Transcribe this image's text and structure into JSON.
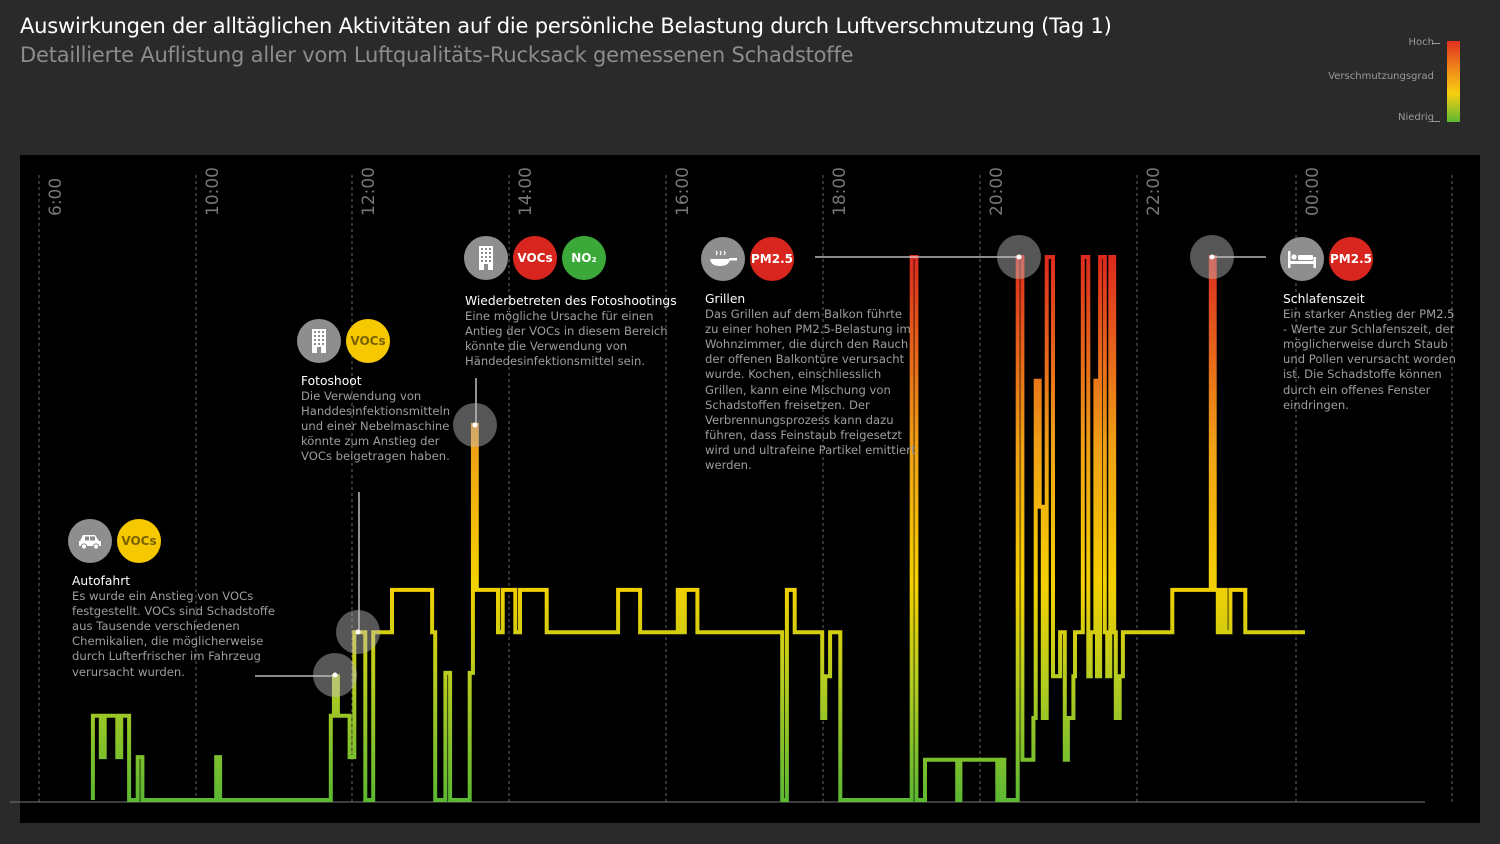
{
  "header": {
    "title": "Auswirkungen der alltäglichen Aktivitäten auf die persönliche Belastung durch Luftverschmutzung (Tag 1)",
    "subtitle": "Detaillierte Auflistung aller vom Luftqualitäts-Rucksack gemessenen Schadstoffe"
  },
  "legend": {
    "high": "Hoch",
    "title": "Verschmutzungsgrad",
    "low": "Niedrig",
    "colors": [
      "#e0301e",
      "#f08a1a",
      "#f7cf10",
      "#5cb832"
    ]
  },
  "chart_data": {
    "type": "line",
    "step": true,
    "x_unit": "hour of day",
    "y_unit": "relative pollution level (0 = Niedrig, 1 = Hoch)",
    "ylim": [
      0,
      1
    ],
    "grid": "vertical dashed",
    "x_ticks": [
      "6:00",
      "10:00",
      "12:00",
      "14:00",
      "16:00",
      "18:00",
      "20:00",
      "22:00",
      "00:00"
    ],
    "series": [
      {
        "points": [
          [
            8.7,
            0.155
          ],
          [
            8.8,
            0.079
          ],
          [
            8.85,
            0.155
          ],
          [
            9.01,
            0.079
          ],
          [
            9.06,
            0.155
          ],
          [
            9.16,
            0
          ],
          [
            9.27,
            0.079
          ],
          [
            9.33,
            0
          ],
          [
            10.27,
            0.079
          ],
          [
            10.32,
            0
          ],
          [
            11.73,
            0.155
          ],
          [
            11.77,
            0.228
          ],
          [
            11.82,
            0.155
          ],
          [
            11.97,
            0.079
          ],
          [
            12.03,
            0.309
          ],
          [
            12.17,
            0
          ],
          [
            12.27,
            0.309
          ],
          [
            12.51,
            0.387
          ],
          [
            13.02,
            0.309
          ],
          [
            13.06,
            0
          ],
          [
            13.19,
            0.234
          ],
          [
            13.25,
            0
          ],
          [
            13.5,
            0.234
          ],
          [
            13.54,
            0.691
          ],
          [
            13.59,
            0.387
          ],
          [
            13.86,
            0.309
          ],
          [
            13.92,
            0.387
          ],
          [
            14.08,
            0.309
          ],
          [
            14.14,
            0.387
          ],
          [
            14.48,
            0.309
          ],
          [
            15.39,
            0.387
          ],
          [
            15.67,
            0.309
          ],
          [
            16.15,
            0.387
          ],
          [
            16.2,
            0.309
          ],
          [
            16.24,
            0.387
          ],
          [
            16.4,
            0.309
          ],
          [
            17.48,
            0
          ],
          [
            17.54,
            0.387
          ],
          [
            17.64,
            0.309
          ],
          [
            17.99,
            0.151
          ],
          [
            18.03,
            0.228
          ],
          [
            18.09,
            0.309
          ],
          [
            18.22,
            0
          ],
          [
            19.13,
            1.0
          ],
          [
            19.19,
            0
          ],
          [
            19.3,
            0.074
          ],
          [
            19.71,
            0
          ],
          [
            19.75,
            0.074
          ],
          [
            20.22,
            0
          ],
          [
            20.26,
            0.074
          ],
          [
            20.31,
            0
          ],
          [
            20.48,
            1.0
          ],
          [
            20.54,
            0.074
          ],
          [
            20.68,
            0.151
          ],
          [
            20.71,
            0.772
          ],
          [
            20.76,
            0.54
          ],
          [
            20.8,
            0.151
          ],
          [
            20.85,
            1.0
          ],
          [
            20.93,
            0.228
          ],
          [
            21.02,
            0.309
          ],
          [
            21.08,
            0.074
          ],
          [
            21.12,
            0.151
          ],
          [
            21.19,
            0.228
          ],
          [
            21.21,
            0.309
          ],
          [
            21.31,
            1.0
          ],
          [
            21.38,
            0.228
          ],
          [
            21.41,
            0.309
          ],
          [
            21.47,
            0.772
          ],
          [
            21.49,
            0.228
          ],
          [
            21.53,
            1.0
          ],
          [
            21.59,
            0.309
          ],
          [
            21.62,
            0.228
          ],
          [
            21.66,
            1.0
          ],
          [
            21.71,
            0.309
          ],
          [
            21.73,
            0.151
          ],
          [
            21.78,
            0.228
          ],
          [
            21.82,
            0.309
          ],
          [
            22.45,
            0.387
          ],
          [
            22.94,
            1.0
          ],
          [
            22.99,
            0.387
          ],
          [
            23.03,
            0.309
          ],
          [
            23.08,
            0.387
          ],
          [
            23.13,
            0.309
          ],
          [
            23.19,
            0.387
          ],
          [
            23.38,
            0.309
          ],
          [
            24.14,
            0.309
          ]
        ]
      }
    ],
    "annotations": [
      {
        "id": "autofahrt",
        "at": [
          11.79,
          0.228
        ],
        "icon": "car-icon",
        "pollutants": [
          {
            "label": "VOCs",
            "color": "#f5c800"
          }
        ],
        "title": "Autofahrt",
        "lines": [
          "Es wurde ein Anstieg von VOCs",
          "festgestellt. VOCs sind Schadstoffe",
          "aus Tausende verschiedenen",
          "Chemikalien, die möglicherweise",
          "durch Lufterfrischer im Fahrzeug",
          "verursacht wurden."
        ]
      },
      {
        "id": "fotoshoot",
        "at": [
          12.08,
          0.309
        ],
        "icon": "building-icon",
        "pollutants": [
          {
            "label": "VOCs",
            "color": "#f5c800"
          }
        ],
        "title": "Fotoshoot",
        "lines": [
          "Die Verwendung von",
          "Handdesinfektionsmitteln",
          "und einer Nebelmaschine",
          "könnte zum Anstieg der",
          "VOCs beigetragen haben."
        ]
      },
      {
        "id": "wiederbetreten",
        "at": [
          13.56,
          0.691
        ],
        "icon": "building-icon",
        "pollutants": [
          {
            "label": "VOCs",
            "color": "#d8261e"
          },
          {
            "label": "NO₂",
            "color": "#3aa93a"
          }
        ],
        "title": "Wiederbetreten des Fotoshootings",
        "lines": [
          "Eine mögliche Ursache für einen",
          "Antieg der VOCs in diesem Bereich",
          "könnte die Verwendung von",
          "Händedesinfektionsmittel sein."
        ]
      },
      {
        "id": "grillen",
        "at": [
          20.5,
          1.0
        ],
        "icon": "frying-pan-icon",
        "pollutants": [
          {
            "label": "PM2.5",
            "color": "#d8261e"
          }
        ],
        "title": "Grillen",
        "lines": [
          "Das Grillen auf dem Balkon führte",
          "zu einer hohen PM2.5-Belastung im",
          "Wohnzimmer, die durch den Rauch",
          "der offenen Balkontüre verursacht",
          "wurde. Kochen, einschliesslich",
          "Grillen, kann eine Mischung von",
          "Schadstoffen freisetzen. Der",
          "Verbrennungsprozess kann dazu",
          "führen, dass Feinstaub freigesetzt",
          "wird und ultrafeine Partikel emittiert",
          "werden."
        ]
      },
      {
        "id": "schlafenszeit",
        "at": [
          22.96,
          1.0
        ],
        "icon": "bed-icon",
        "pollutants": [
          {
            "label": "PM2.5",
            "color": "#d8261e"
          }
        ],
        "title": "Schlafenszeit",
        "lines": [
          "Ein starker Anstieg der PM2.5",
          "- Werte zur Schlafenszeit, der",
          "möglicherweise durch Staub",
          "und Pollen verursacht worden",
          "ist. Die Schadstoffe können",
          "durch ein offenes Fenster",
          "eindringen."
        ]
      }
    ]
  }
}
